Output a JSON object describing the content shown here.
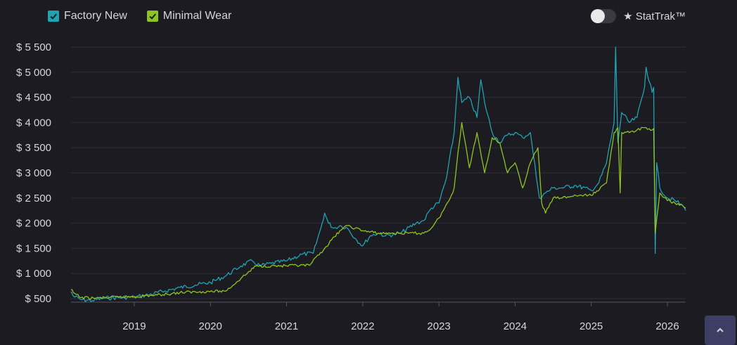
{
  "legend": {
    "factory_new": {
      "label": "Factory New",
      "color": "#1fa2b3",
      "checked": true
    },
    "minimal_wear": {
      "label": "Minimal Wear",
      "color": "#8fc31f",
      "checked": true
    }
  },
  "stattrak": {
    "label": "★ StatTrak™",
    "enabled": false
  },
  "scroll_top_icon": "chevron-up-icon",
  "chart_data": {
    "type": "line",
    "title": "",
    "xlabel": "",
    "ylabel": "",
    "ylim": [
      450,
      5500
    ],
    "xlim": [
      2018.17,
      2026.24
    ],
    "grid": true,
    "y_ticks": [
      500,
      1000,
      1500,
      2000,
      2500,
      3000,
      3500,
      4000,
      4500,
      5000,
      5500
    ],
    "y_tick_labels": [
      "$ 500",
      "$ 1 000",
      "$ 1 500",
      "$ 2 000",
      "$ 2 500",
      "$ 3 000",
      "$ 3 500",
      "$ 4 000",
      "$ 4 500",
      "$ 5 000",
      "$ 5 500"
    ],
    "x_ticks": [
      2019,
      2020,
      2021,
      2022,
      2023,
      2024,
      2025,
      2026
    ],
    "x_tick_labels": [
      "2019",
      "2020",
      "2021",
      "2022",
      "2023",
      "2024",
      "2025",
      "2026"
    ],
    "series": [
      {
        "name": "Factory New",
        "color": "#1fa2b3",
        "x": [
          2018.17,
          2018.2,
          2018.3,
          2018.45,
          2018.6,
          2018.8,
          2019.0,
          2019.2,
          2019.4,
          2019.6,
          2019.8,
          2020.0,
          2020.2,
          2020.4,
          2020.55,
          2020.65,
          2020.8,
          2021.0,
          2021.2,
          2021.35,
          2021.45,
          2021.5,
          2021.55,
          2021.62,
          2021.7,
          2021.8,
          2021.9,
          2022.0,
          2022.1,
          2022.2,
          2022.3,
          2022.5,
          2022.7,
          2022.8,
          2022.9,
          2023.0,
          2023.1,
          2023.2,
          2023.25,
          2023.3,
          2023.4,
          2023.5,
          2023.55,
          2023.6,
          2023.7,
          2023.75,
          2023.8,
          2023.9,
          2024.0,
          2024.1,
          2024.2,
          2024.3,
          2024.32,
          2024.4,
          2024.5,
          2024.6,
          2024.8,
          2025.0,
          2025.1,
          2025.2,
          2025.3,
          2025.32,
          2025.35,
          2025.4,
          2025.5,
          2025.6,
          2025.7,
          2025.72,
          2025.8,
          2025.82,
          2025.84,
          2025.86,
          2025.9,
          2026.0,
          2026.1,
          2026.2,
          2026.24
        ],
        "values": [
          640,
          550,
          480,
          460,
          510,
          520,
          530,
          580,
          650,
          720,
          770,
          820,
          950,
          1150,
          1250,
          1150,
          1200,
          1250,
          1380,
          1400,
          1900,
          2200,
          2000,
          1900,
          1950,
          1900,
          1700,
          1550,
          1750,
          1800,
          1750,
          1800,
          2000,
          2050,
          2300,
          2400,
          2900,
          3800,
          4900,
          4400,
          4500,
          4100,
          4850,
          4400,
          3800,
          3700,
          3600,
          3750,
          3800,
          3700,
          3800,
          2700,
          2500,
          2600,
          2700,
          2700,
          2750,
          2650,
          2800,
          3200,
          4000,
          5500,
          3600,
          4200,
          4000,
          4100,
          4700,
          5100,
          4600,
          4700,
          1400,
          3200,
          2700,
          2500,
          2450,
          2350,
          2250
        ]
      },
      {
        "name": "Minimal Wear",
        "color": "#8fc31f",
        "x": [
          2018.17,
          2018.2,
          2018.3,
          2018.5,
          2018.8,
          2019.0,
          2019.3,
          2019.6,
          2019.9,
          2020.2,
          2020.4,
          2020.6,
          2020.8,
          2021.0,
          2021.3,
          2021.5,
          2021.7,
          2021.8,
          2021.9,
          2022.0,
          2022.2,
          2022.4,
          2022.6,
          2022.8,
          2022.9,
          2023.0,
          2023.15,
          2023.2,
          2023.25,
          2023.3,
          2023.4,
          2023.5,
          2023.6,
          2023.7,
          2023.8,
          2023.9,
          2024.0,
          2024.1,
          2024.2,
          2024.3,
          2024.35,
          2024.4,
          2024.5,
          2024.6,
          2024.8,
          2025.0,
          2025.2,
          2025.3,
          2025.35,
          2025.38,
          2025.4,
          2025.5,
          2025.6,
          2025.7,
          2025.8,
          2025.82,
          2025.84,
          2025.9,
          2026.0,
          2026.1,
          2026.2,
          2026.24
        ],
        "values": [
          680,
          620,
          520,
          510,
          530,
          540,
          570,
          620,
          640,
          650,
          900,
          1150,
          1150,
          1150,
          1160,
          1500,
          1850,
          1950,
          1900,
          1850,
          1800,
          1800,
          1800,
          1800,
          1900,
          2100,
          2500,
          2700,
          3400,
          4000,
          3100,
          3800,
          3000,
          3700,
          3600,
          3000,
          3200,
          2700,
          3200,
          3500,
          2400,
          2200,
          2500,
          2500,
          2550,
          2550,
          2800,
          3800,
          3900,
          2600,
          3800,
          3800,
          3850,
          3900,
          3850,
          3880,
          1800,
          2600,
          2450,
          2400,
          2350,
          2300
        ]
      }
    ]
  }
}
